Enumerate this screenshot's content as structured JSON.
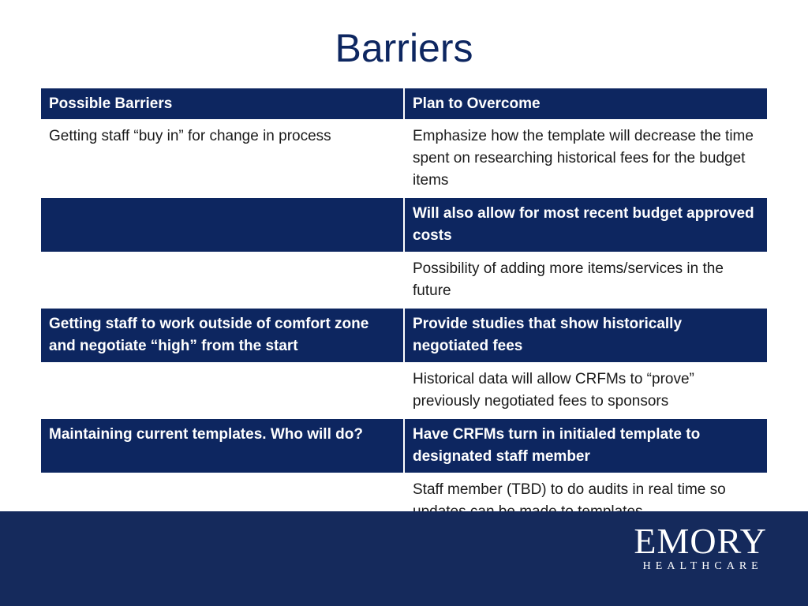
{
  "title": "Barriers",
  "table": {
    "headers": [
      "Possible Barriers",
      "Plan to Overcome"
    ],
    "rows": [
      {
        "style": "light",
        "barrier": "Getting staff “buy in” for change in process",
        "plan": "Emphasize how the template will decrease the time spent on researching historical fees for the budget items"
      },
      {
        "style": "dark",
        "barrier": "",
        "plan": "Will also allow for most recent budget approved costs"
      },
      {
        "style": "light",
        "barrier": "",
        "plan": "Possibility of adding more items/services in the future"
      },
      {
        "style": "dark",
        "barrier": "Getting staff to work outside of comfort zone and negotiate “high” from the start",
        "plan": "Provide studies that show historically negotiated fees"
      },
      {
        "style": "light",
        "barrier": "",
        "plan": "Historical data will allow CRFMs to “prove” previously negotiated fees to sponsors"
      },
      {
        "style": "dark",
        "barrier": "Maintaining current templates. Who will do?",
        "plan": "Have CRFMs turn in initialed template to designated staff member"
      },
      {
        "style": "light",
        "barrier": "",
        "plan": "Staff member (TBD) to do audits in real time so updates can be made to templates"
      }
    ]
  },
  "logo": {
    "main": "EMORY",
    "sub": "HEALTHCARE"
  },
  "colors": {
    "navy": "#0d2660",
    "footer": "#152a5c"
  }
}
